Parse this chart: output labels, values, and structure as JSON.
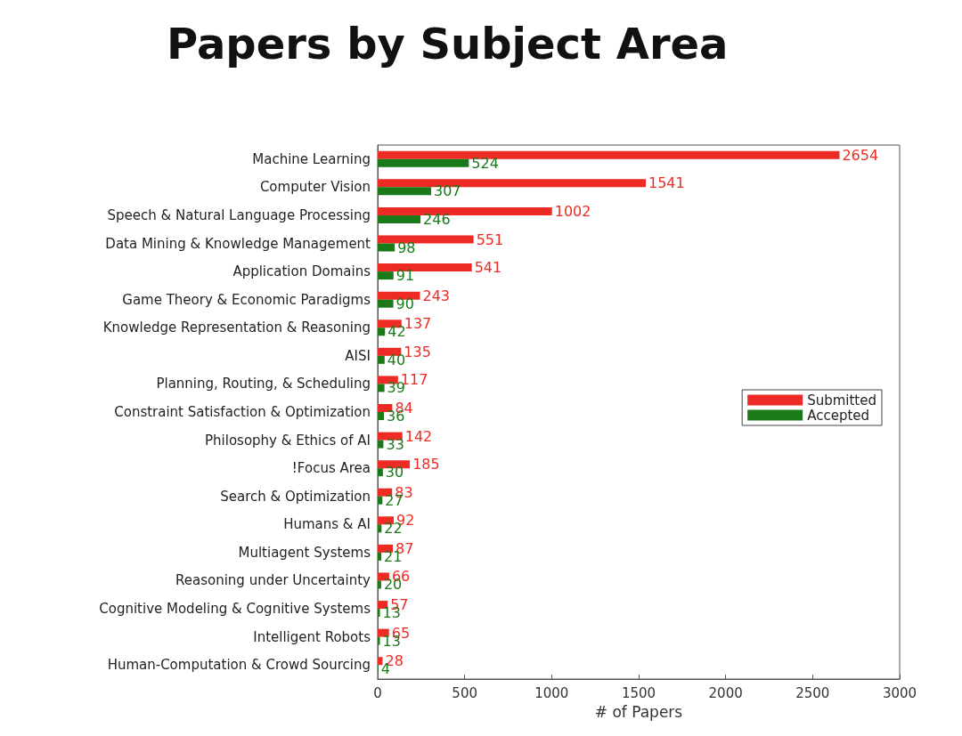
{
  "chart_data": {
    "type": "bar",
    "orientation": "horizontal",
    "title": "Papers by Subject Area",
    "xlabel": "# of Papers",
    "categories": [
      "Machine Learning",
      "Computer Vision",
      "Speech & Natural Language Processing",
      "Data Mining & Knowledge Management",
      "Application Domains",
      "Game Theory & Economic Paradigms",
      "Knowledge Representation & Reasoning",
      "AISI",
      "Planning, Routing, & Scheduling",
      "Constraint Satisfaction & Optimization",
      "Philosophy & Ethics of AI",
      "!Focus Area",
      "Search & Optimization",
      "Humans & AI",
      "Multiagent Systems",
      "Reasoning under Uncertainty",
      "Cognitive Modeling & Cognitive Systems",
      "Intelligent Robots",
      "Human-Computation & Crowd Sourcing"
    ],
    "series": [
      {
        "name": "Submitted",
        "color": "#ee2a24",
        "values": [
          2654,
          1541,
          1002,
          551,
          541,
          243,
          137,
          135,
          117,
          84,
          142,
          185,
          83,
          92,
          87,
          66,
          57,
          65,
          28
        ]
      },
      {
        "name": "Accepted",
        "color": "#1a7a1a",
        "values": [
          524,
          307,
          246,
          98,
          91,
          90,
          42,
          40,
          39,
          36,
          33,
          30,
          27,
          22,
          21,
          20,
          13,
          13,
          4
        ]
      }
    ],
    "xlim": [
      0,
      3000
    ],
    "xticks": [
      0,
      500,
      1000,
      1500,
      2000,
      2500,
      3000
    ],
    "data_labels": true,
    "grid": false,
    "legend": "right"
  }
}
